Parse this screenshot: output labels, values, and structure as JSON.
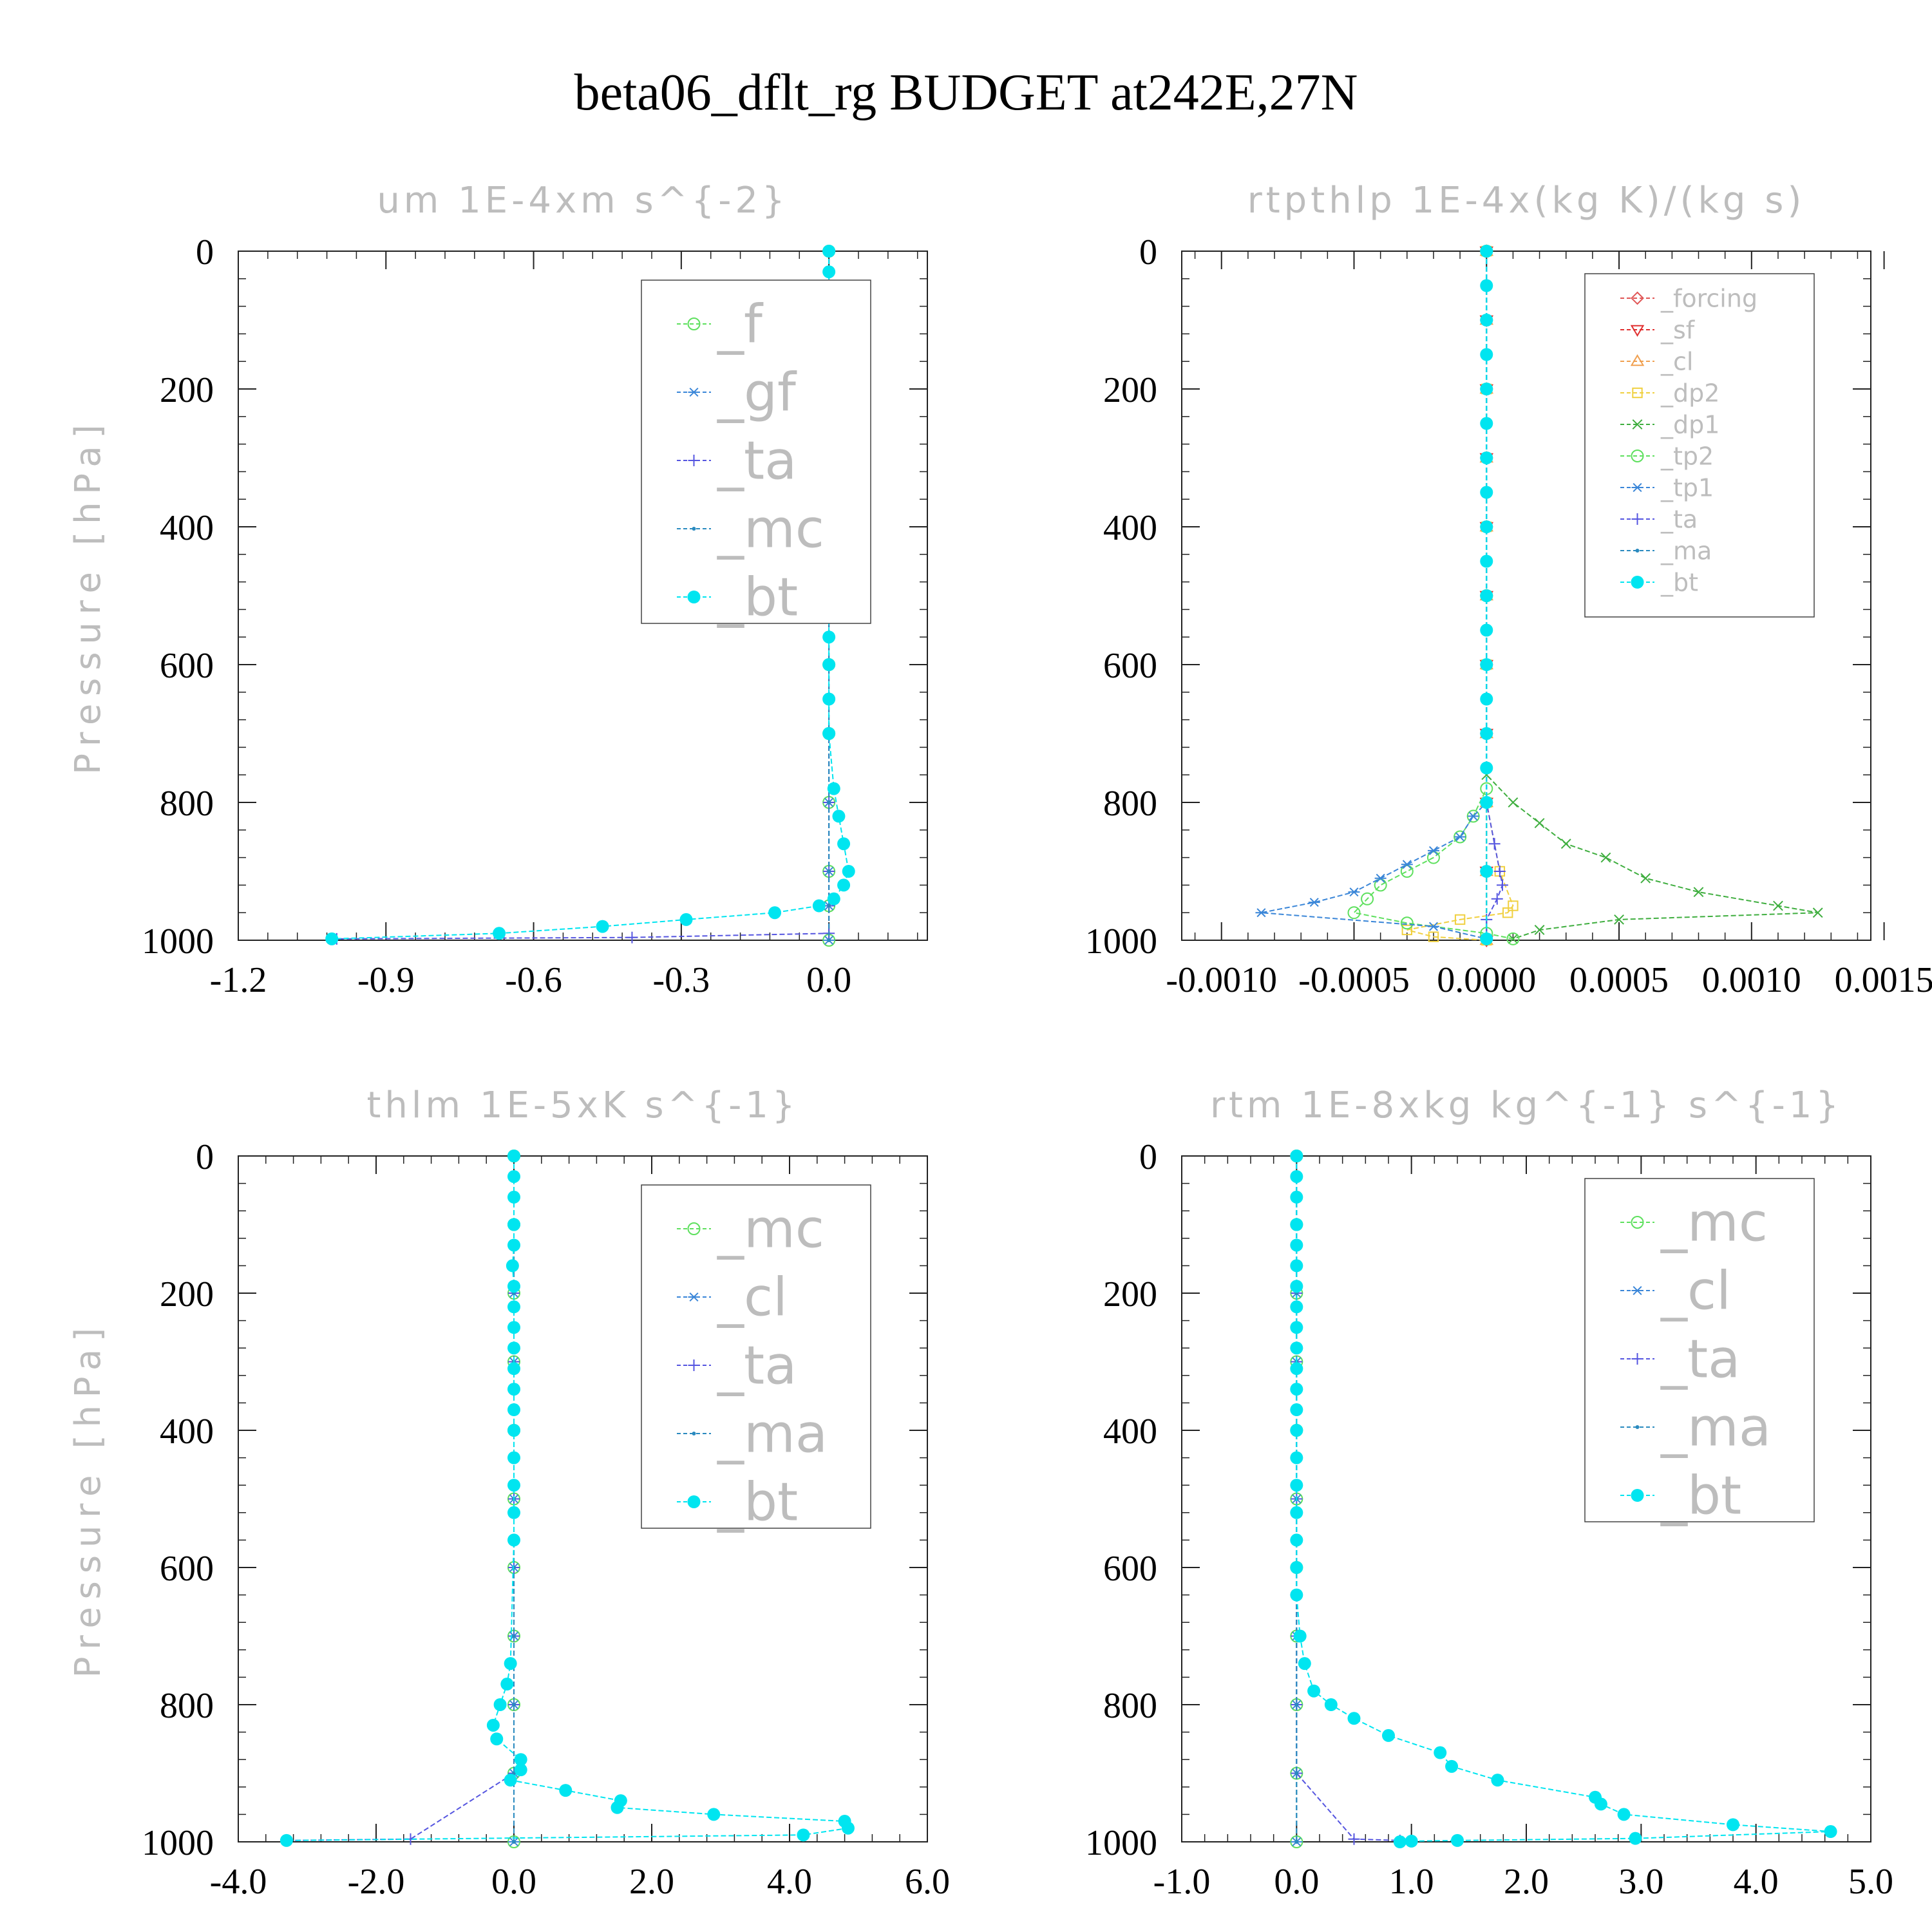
{
  "title": "beta06_dflt_rg  BUDGET at242E,27N",
  "chart_data": [
    {
      "type": "line",
      "title": "um  1E-4xm s^{-2}",
      "ylabel": "Pressure [hPa]",
      "xticks": [
        "-1.2",
        "-0.9",
        "-0.6",
        "-0.3",
        "0.0"
      ],
      "yticks": [
        "0",
        "200",
        "400",
        "600",
        "800",
        "1000"
      ],
      "xlim": [
        -1.2,
        0.2
      ],
      "ylim": [
        0,
        1000
      ],
      "y_inverted": true,
      "legend_location": "top-right",
      "series": [
        {
          "name": "_f",
          "color": "#5ee05e",
          "marker": "circle-open",
          "x": [
            0,
            0,
            0,
            0,
            0,
            0,
            0,
            0,
            0,
            0,
            0,
            0
          ],
          "y": [
            0,
            100,
            200,
            300,
            400,
            500,
            600,
            700,
            800,
            900,
            950,
            1000
          ]
        },
        {
          "name": "_gf",
          "color": "#3a86d8",
          "marker": "asterisk",
          "x": [
            0,
            0,
            0,
            0,
            0,
            0,
            0,
            0,
            0,
            0,
            0,
            0
          ],
          "y": [
            0,
            100,
            200,
            300,
            400,
            500,
            600,
            700,
            800,
            900,
            950,
            1000
          ]
        },
        {
          "name": "_ta",
          "color": "#5555e0",
          "marker": "plus",
          "x": [
            0,
            0,
            0,
            0,
            0,
            0,
            0,
            0,
            0,
            0,
            0,
            0,
            -0.4,
            -1.0
          ],
          "y": [
            0,
            100,
            200,
            300,
            400,
            500,
            600,
            700,
            800,
            900,
            950,
            990,
            996,
            998
          ]
        },
        {
          "name": "_mc",
          "color": "#2a8abf",
          "marker": "dot",
          "x": [
            0,
            0,
            0,
            0,
            0,
            0,
            0,
            0,
            0,
            0,
            0,
            0
          ],
          "y": [
            0,
            100,
            200,
            300,
            400,
            500,
            600,
            700,
            800,
            900,
            950,
            1000
          ]
        },
        {
          "name": "_bt",
          "color": "#00e5f0",
          "marker": "filled-circle",
          "x": [
            0.0,
            0.0,
            0.0,
            0.0,
            0.01,
            0.0,
            0.0,
            -0.01,
            -0.01,
            -0.005,
            0.0,
            0.0,
            0.0,
            0.0,
            0.0,
            0.0,
            0.0,
            0.0,
            0.0,
            0.0,
            0.0,
            0.0,
            0.01,
            0.02,
            0.03,
            0.04,
            0.03,
            0.01,
            -0.02,
            -0.11,
            -0.29,
            -0.46,
            -0.67,
            -1.01
          ],
          "y": [
            0,
            30,
            60,
            100,
            140,
            160,
            180,
            200,
            220,
            250,
            280,
            310,
            340,
            370,
            400,
            440,
            480,
            520,
            560,
            600,
            650,
            700,
            780,
            820,
            860,
            900,
            920,
            940,
            950,
            960,
            970,
            980,
            990,
            998
          ]
        }
      ]
    },
    {
      "type": "line",
      "title": "rtpthlp  1E-4x(kg K)/(kg s)",
      "ylabel": "Pressure [hPa]",
      "xticks": [
        "-0.0010",
        "-0.0005",
        "0.0000",
        "0.0005",
        "0.0010",
        "0.0015"
      ],
      "yticks": [
        "0",
        "200",
        "400",
        "600",
        "800",
        "1000"
      ],
      "xlim": [
        -0.00115,
        0.00145
      ],
      "ylim": [
        0,
        1000
      ],
      "y_inverted": true,
      "legend_location": "top-right",
      "series": [
        {
          "name": "_forcing",
          "color": "#e05555",
          "marker": "diamond-open",
          "x": [
            0,
            0,
            0,
            0,
            0,
            0,
            0,
            0,
            0,
            0,
            0
          ],
          "y": [
            0,
            100,
            200,
            300,
            400,
            500,
            600,
            700,
            800,
            900,
            1000
          ]
        },
        {
          "name": "_sf",
          "color": "#e03030",
          "marker": "triangle-down",
          "x": [
            0,
            0,
            0,
            0,
            0,
            0,
            0,
            0,
            0,
            0,
            0
          ],
          "y": [
            0,
            100,
            200,
            300,
            400,
            500,
            600,
            700,
            800,
            900,
            1000
          ]
        },
        {
          "name": "_cl",
          "color": "#f0a050",
          "marker": "triangle-up",
          "x": [
            0,
            0,
            0,
            0,
            0,
            0,
            0,
            0,
            0,
            0,
            0
          ],
          "y": [
            0,
            100,
            200,
            300,
            400,
            500,
            600,
            700,
            800,
            900,
            1000
          ]
        },
        {
          "name": "_dp2",
          "color": "#f0d040",
          "marker": "square-open",
          "x": [
            0,
            0,
            0,
            0,
            0,
            5e-05,
            0.0001,
            8e-05,
            -0.0001,
            -0.0003,
            -0.0002,
            0
          ],
          "y": [
            0,
            200,
            400,
            600,
            800,
            900,
            950,
            960,
            970,
            985,
            995,
            1000
          ]
        },
        {
          "name": "_dp1",
          "color": "#3fae3f",
          "marker": "x",
          "x": [
            0,
            0,
            0,
            0.0001,
            0.0002,
            0.0003,
            0.00045,
            0.0006,
            0.0008,
            0.0011,
            0.00125,
            0.0005,
            0.0002,
            0.0001
          ],
          "y": [
            0,
            500,
            760,
            800,
            830,
            860,
            880,
            910,
            930,
            950,
            960,
            970,
            985,
            998
          ]
        },
        {
          "name": "_tp2",
          "color": "#5ee05e",
          "marker": "circle-open",
          "x": [
            0,
            0,
            0,
            -5e-05,
            -0.0001,
            -0.0002,
            -0.0003,
            -0.0004,
            -0.00045,
            -0.0005,
            -0.0003,
            0.0,
            0.0001
          ],
          "y": [
            0,
            500,
            780,
            820,
            850,
            880,
            900,
            920,
            940,
            960,
            975,
            990,
            998
          ]
        },
        {
          "name": "_tp1",
          "color": "#3a86d8",
          "marker": "asterisk",
          "x": [
            0,
            0,
            0,
            -5e-05,
            -0.0001,
            -0.0002,
            -0.0003,
            -0.0004,
            -0.0005,
            -0.00065,
            -0.00085,
            -0.0002,
            0.0
          ],
          "y": [
            0,
            500,
            800,
            820,
            850,
            870,
            890,
            910,
            930,
            945,
            960,
            980,
            998
          ]
        },
        {
          "name": "_ta",
          "color": "#5555e0",
          "marker": "plus",
          "x": [
            0,
            0,
            0,
            3e-05,
            5e-05,
            6e-05,
            4e-05,
            0,
            0
          ],
          "y": [
            0,
            500,
            800,
            860,
            900,
            920,
            940,
            970,
            998
          ]
        },
        {
          "name": "_ma",
          "color": "#2a8abf",
          "marker": "dot",
          "x": [
            0,
            0,
            0,
            0,
            0,
            0,
            0,
            0,
            0,
            0,
            0
          ],
          "y": [
            0,
            100,
            200,
            300,
            400,
            500,
            600,
            700,
            800,
            900,
            1000
          ]
        },
        {
          "name": "_bt",
          "color": "#00e5f0",
          "marker": "filled-circle",
          "x": [
            0,
            0,
            0,
            0,
            0,
            0,
            0,
            0,
            0,
            0,
            0,
            0,
            0,
            0,
            0,
            0,
            0,
            0,
            0
          ],
          "y": [
            0,
            50,
            100,
            150,
            200,
            250,
            300,
            350,
            400,
            450,
            500,
            550,
            600,
            650,
            700,
            750,
            800,
            900,
            998
          ]
        }
      ]
    },
    {
      "type": "line",
      "title": "thlm  1E-5xK s^{-1}",
      "ylabel": "Pressure [hPa]",
      "xticks": [
        "-4.0",
        "-2.0",
        "0.0",
        "2.0",
        "4.0",
        "6.0"
      ],
      "yticks": [
        "0",
        "200",
        "400",
        "600",
        "800",
        "1000"
      ],
      "xlim": [
        -4.0,
        6.0
      ],
      "ylim": [
        0,
        1000
      ],
      "y_inverted": true,
      "legend_location": "top-right",
      "series": [
        {
          "name": "_mc",
          "color": "#5ee05e",
          "marker": "circle-open",
          "x": [
            0,
            0,
            0,
            0,
            0,
            0,
            0,
            0,
            0,
            0,
            0
          ],
          "y": [
            0,
            100,
            200,
            300,
            400,
            500,
            600,
            700,
            800,
            900,
            1000
          ]
        },
        {
          "name": "_cl",
          "color": "#3a86d8",
          "marker": "asterisk",
          "x": [
            0,
            0,
            0,
            0,
            0,
            0,
            0,
            0,
            0,
            0,
            0
          ],
          "y": [
            0,
            100,
            200,
            300,
            400,
            500,
            600,
            700,
            800,
            900,
            1000
          ]
        },
        {
          "name": "_ta",
          "color": "#5555e0",
          "marker": "plus",
          "x": [
            0,
            0,
            0,
            0,
            0,
            0,
            0,
            0,
            0,
            0,
            -1.5,
            -3.3
          ],
          "y": [
            0,
            100,
            200,
            300,
            400,
            500,
            600,
            700,
            800,
            900,
            996,
            998
          ]
        },
        {
          "name": "_ma",
          "color": "#2a8abf",
          "marker": "dot",
          "x": [
            0,
            0,
            0,
            0,
            0,
            0,
            0,
            0,
            0,
            0,
            0
          ],
          "y": [
            0,
            100,
            200,
            300,
            400,
            500,
            600,
            700,
            800,
            900,
            1000
          ]
        },
        {
          "name": "_bt",
          "color": "#00e5f0",
          "marker": "filled-circle",
          "x": [
            0.0,
            0.0,
            0.0,
            0.0,
            0.0,
            -0.02,
            0.0,
            0.0,
            0.0,
            0.0,
            0.0,
            0.0,
            0.0,
            0.0,
            0.0,
            0.0,
            0.0,
            0.0,
            -0.05,
            -0.1,
            -0.2,
            -0.3,
            -0.25,
            0.1,
            0.1,
            -0.05,
            0.75,
            1.55,
            1.5,
            2.9,
            4.8,
            4.85,
            4.2,
            -3.3
          ],
          "y": [
            0,
            30,
            60,
            100,
            130,
            160,
            190,
            220,
            250,
            280,
            310,
            340,
            370,
            400,
            440,
            480,
            520,
            560,
            740,
            770,
            800,
            830,
            850,
            880,
            895,
            910,
            925,
            940,
            950,
            960,
            970,
            980,
            990,
            998
          ]
        }
      ]
    },
    {
      "type": "line",
      "title": "rtm  1E-8xkg kg^{-1} s^{-1}",
      "ylabel": "Pressure [hPa]",
      "xticks": [
        "-1.0",
        "0.0",
        "1.0",
        "2.0",
        "3.0",
        "4.0",
        "5.0"
      ],
      "yticks": [
        "0",
        "200",
        "400",
        "600",
        "800",
        "1000"
      ],
      "xlim": [
        -1.0,
        5.0
      ],
      "ylim": [
        0,
        1000
      ],
      "y_inverted": true,
      "legend_location": "top-right",
      "series": [
        {
          "name": "_mc",
          "color": "#5ee05e",
          "marker": "circle-open",
          "x": [
            0,
            0,
            0,
            0,
            0,
            0,
            0,
            0,
            0,
            0,
            0
          ],
          "y": [
            0,
            100,
            200,
            300,
            400,
            500,
            600,
            700,
            800,
            900,
            1000
          ]
        },
        {
          "name": "_cl",
          "color": "#3a86d8",
          "marker": "asterisk",
          "x": [
            0,
            0,
            0,
            0,
            0,
            0,
            0,
            0,
            0,
            0,
            0
          ],
          "y": [
            0,
            100,
            200,
            300,
            400,
            500,
            600,
            700,
            800,
            900,
            1000
          ]
        },
        {
          "name": "_ta",
          "color": "#5555e0",
          "marker": "plus",
          "x": [
            0,
            0,
            0,
            0,
            0,
            0,
            0,
            0,
            0,
            0,
            0.5,
            0.9
          ],
          "y": [
            0,
            100,
            200,
            300,
            400,
            500,
            600,
            700,
            800,
            900,
            996,
            998
          ]
        },
        {
          "name": "_ma",
          "color": "#2a8abf",
          "marker": "dot",
          "x": [
            0,
            0,
            0,
            0,
            0,
            0,
            0,
            0,
            0,
            0,
            0
          ],
          "y": [
            0,
            100,
            200,
            300,
            400,
            500,
            600,
            700,
            800,
            900,
            1000
          ]
        },
        {
          "name": "_bt",
          "color": "#00e5f0",
          "marker": "filled-circle",
          "x": [
            0.0,
            0.0,
            0.0,
            0.0,
            0.0,
            0.0,
            0.0,
            0.0,
            0.0,
            0.0,
            0.0,
            0.0,
            0.0,
            0.0,
            0.0,
            0.0,
            0.0,
            0.0,
            0.0,
            0.0,
            0.03,
            0.07,
            0.15,
            0.3,
            0.5,
            0.8,
            1.25,
            1.35,
            1.75,
            2.6,
            2.65,
            2.85,
            3.8,
            4.65,
            2.95,
            1.4,
            1.0,
            0.9
          ],
          "y": [
            0,
            30,
            60,
            100,
            130,
            160,
            190,
            220,
            250,
            280,
            310,
            340,
            370,
            400,
            440,
            480,
            520,
            560,
            600,
            640,
            700,
            740,
            780,
            800,
            820,
            845,
            870,
            890,
            910,
            935,
            945,
            960,
            975,
            985,
            995,
            998,
            999,
            1000
          ]
        }
      ]
    }
  ]
}
